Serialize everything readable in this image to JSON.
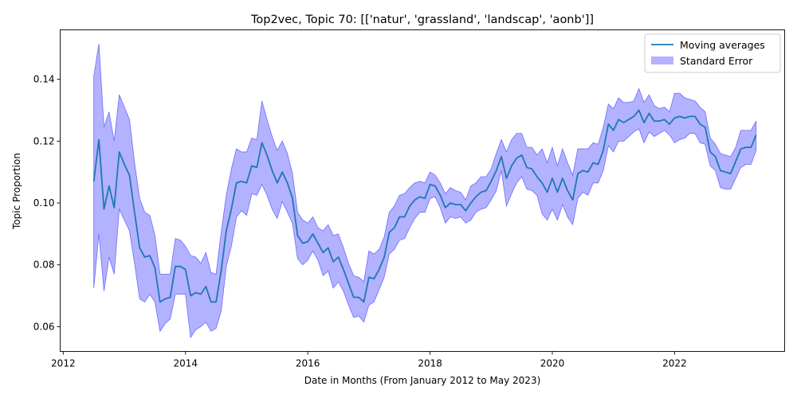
{
  "chart_data": {
    "type": "line",
    "title": "Top2vec, Topic 70: [['natur', 'grassland', 'landscap', 'aonb']]",
    "xlabel": "Date in Months (From January 2012 to May 2023)",
    "ylabel": "Topic Proportion",
    "xlim": [
      2011.95,
      2023.8
    ],
    "ylim": [
      0.052,
      0.156
    ],
    "x_ticks": [
      2012,
      2014,
      2016,
      2018,
      2020,
      2022
    ],
    "y_ticks": [
      0.06,
      0.08,
      0.1,
      0.12,
      0.14
    ],
    "y_tick_labels": [
      "0.06",
      "0.08",
      "0.10",
      "0.12",
      "0.14"
    ],
    "grid": false,
    "legend_position": "top-right",
    "legend": [
      "Moving averages",
      "Standard Error"
    ],
    "colors": {
      "line": "#1f77b4",
      "band": "#0000ff",
      "band_edge": "#6b6bff"
    },
    "x_start": 2012.5,
    "x_step_months": 1,
    "series": [
      {
        "name": "Moving averages",
        "values": [
          0.107,
          0.1205,
          0.098,
          0.1055,
          0.0985,
          0.1165,
          0.1125,
          0.109,
          0.097,
          0.0855,
          0.0825,
          0.083,
          0.079,
          0.068,
          0.069,
          0.0695,
          0.0795,
          0.0795,
          0.0785,
          0.07,
          0.071,
          0.0705,
          0.073,
          0.068,
          0.068,
          0.078,
          0.091,
          0.098,
          0.1065,
          0.107,
          0.1065,
          0.112,
          0.1115,
          0.1195,
          0.1155,
          0.1105,
          0.1065,
          0.11,
          0.1065,
          0.1015,
          0.0895,
          0.087,
          0.0875,
          0.09,
          0.087,
          0.084,
          0.0855,
          0.081,
          0.0825,
          0.0785,
          0.074,
          0.0695,
          0.0695,
          0.068,
          0.076,
          0.0755,
          0.0785,
          0.0825,
          0.0905,
          0.092,
          0.0955,
          0.0955,
          0.099,
          0.101,
          0.102,
          0.1015,
          0.106,
          0.1055,
          0.1025,
          0.0985,
          0.1,
          0.0995,
          0.0995,
          0.0975,
          0.1,
          0.102,
          0.1035,
          0.104,
          0.107,
          0.1105,
          0.115,
          0.108,
          0.112,
          0.1145,
          0.1155,
          0.1115,
          0.111,
          0.1085,
          0.1065,
          0.1035,
          0.108,
          0.1035,
          0.108,
          0.104,
          0.101,
          0.1095,
          0.1105,
          0.11,
          0.113,
          0.1125,
          0.117,
          0.1255,
          0.1235,
          0.127,
          0.126,
          0.127,
          0.128,
          0.13,
          0.126,
          0.129,
          0.1265,
          0.1265,
          0.127,
          0.1255,
          0.1275,
          0.128,
          0.1275,
          0.128,
          0.128,
          0.1255,
          0.1245,
          0.1165,
          0.115,
          0.1105,
          0.11,
          0.1095,
          0.1135,
          0.1175,
          0.118,
          0.118,
          0.122
        ]
      },
      {
        "name": "Standard Error",
        "upper": [
          0.141,
          0.1515,
          0.1245,
          0.1295,
          0.12,
          0.135,
          0.131,
          0.127,
          0.113,
          0.1015,
          0.097,
          0.096,
          0.0895,
          0.077,
          0.077,
          0.077,
          0.0885,
          0.088,
          0.086,
          0.083,
          0.0825,
          0.0805,
          0.084,
          0.0775,
          0.077,
          0.0905,
          0.1025,
          0.111,
          0.1175,
          0.1165,
          0.1165,
          0.121,
          0.1205,
          0.133,
          0.127,
          0.1215,
          0.117,
          0.12,
          0.116,
          0.1095,
          0.097,
          0.0945,
          0.0935,
          0.0955,
          0.092,
          0.091,
          0.093,
          0.0895,
          0.09,
          0.0855,
          0.0805,
          0.0765,
          0.076,
          0.0745,
          0.0845,
          0.0835,
          0.085,
          0.089,
          0.097,
          0.099,
          0.1025,
          0.103,
          0.105,
          0.1065,
          0.107,
          0.1065,
          0.11,
          0.109,
          0.1065,
          0.103,
          0.105,
          0.104,
          0.1035,
          0.101,
          0.1055,
          0.1065,
          0.1085,
          0.1085,
          0.111,
          0.116,
          0.1205,
          0.1165,
          0.1205,
          0.1225,
          0.1225,
          0.118,
          0.118,
          0.1155,
          0.1175,
          0.113,
          0.118,
          0.112,
          0.1175,
          0.113,
          0.109,
          0.1175,
          0.1175,
          0.1175,
          0.1195,
          0.119,
          0.1245,
          0.132,
          0.1305,
          0.134,
          0.1325,
          0.1325,
          0.133,
          0.137,
          0.1325,
          0.135,
          0.1315,
          0.1305,
          0.131,
          0.1295,
          0.1355,
          0.1355,
          0.134,
          0.1335,
          0.133,
          0.131,
          0.1295,
          0.121,
          0.119,
          0.116,
          0.1155,
          0.115,
          0.118,
          0.1235,
          0.1235,
          0.1235,
          0.1265
        ]
      },
      {
        "name": "Standard Error",
        "lower": [
          0.0725,
          0.09,
          0.0715,
          0.0825,
          0.077,
          0.098,
          0.0945,
          0.091,
          0.0805,
          0.069,
          0.068,
          0.0705,
          0.068,
          0.0585,
          0.061,
          0.0625,
          0.0705,
          0.0705,
          0.0705,
          0.0565,
          0.059,
          0.06,
          0.0615,
          0.0585,
          0.0595,
          0.065,
          0.0795,
          0.086,
          0.0955,
          0.0975,
          0.096,
          0.103,
          0.1025,
          0.106,
          0.1025,
          0.098,
          0.095,
          0.1005,
          0.097,
          0.0935,
          0.082,
          0.08,
          0.0815,
          0.0845,
          0.0815,
          0.0765,
          0.078,
          0.0725,
          0.0745,
          0.0715,
          0.067,
          0.063,
          0.0635,
          0.0615,
          0.067,
          0.068,
          0.072,
          0.076,
          0.0835,
          0.085,
          0.088,
          0.0885,
          0.092,
          0.095,
          0.097,
          0.097,
          0.1015,
          0.102,
          0.0985,
          0.0935,
          0.0955,
          0.095,
          0.0955,
          0.0935,
          0.0945,
          0.097,
          0.098,
          0.0985,
          0.101,
          0.104,
          0.1105,
          0.099,
          0.103,
          0.1065,
          0.1085,
          0.1045,
          0.104,
          0.1025,
          0.0965,
          0.0945,
          0.098,
          0.0945,
          0.0995,
          0.0955,
          0.093,
          0.1015,
          0.1035,
          0.1025,
          0.1065,
          0.1065,
          0.1105,
          0.1185,
          0.1165,
          0.12,
          0.12,
          0.1215,
          0.123,
          0.124,
          0.1195,
          0.123,
          0.1215,
          0.1225,
          0.1235,
          0.122,
          0.1195,
          0.1205,
          0.121,
          0.1225,
          0.1225,
          0.1195,
          0.119,
          0.112,
          0.1105,
          0.105,
          0.1045,
          0.1045,
          0.108,
          0.1115,
          0.1125,
          0.1125,
          0.117
        ]
      }
    ]
  }
}
